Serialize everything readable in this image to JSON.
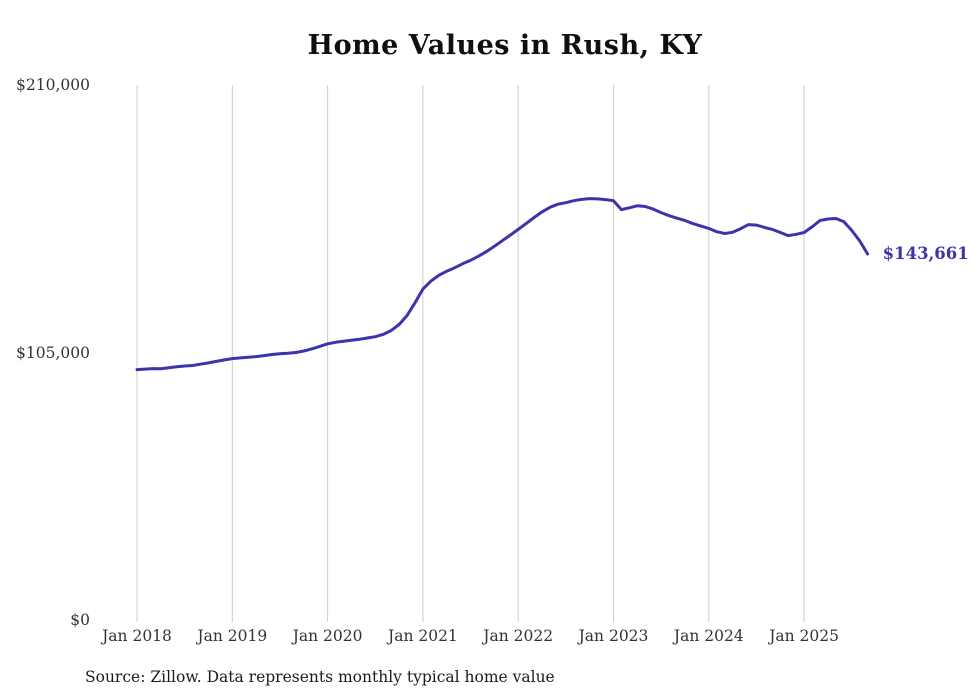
{
  "chart_data": {
    "type": "line",
    "title": "Home Values in Rush, KY",
    "source_note": "Source: Zillow. Data represents monthly typical home value",
    "series_name": "Typical home value",
    "x_start": "Jan 2018",
    "x_end": "Sep 2025",
    "frequency": "monthly",
    "ylim": [
      0,
      210000
    ],
    "grid": "vertical-only",
    "line_color": "#3b34ab",
    "grid_color": "#cccccc",
    "current_value": 143661,
    "end_label": "$143,661",
    "y_ticks": [
      {
        "label": "$0",
        "value": 0
      },
      {
        "label": "$105,000",
        "value": 105000
      },
      {
        "label": "$210,000",
        "value": 210000
      }
    ],
    "x_ticks": [
      {
        "label": "Jan 2018",
        "month_index": 0
      },
      {
        "label": "Jan 2019",
        "month_index": 12
      },
      {
        "label": "Jan 2020",
        "month_index": 24
      },
      {
        "label": "Jan 2021",
        "month_index": 36
      },
      {
        "label": "Jan 2022",
        "month_index": 48
      },
      {
        "label": "Jan 2023",
        "month_index": 60
      },
      {
        "label": "Jan 2024",
        "month_index": 72
      },
      {
        "label": "Jan 2025",
        "month_index": 84
      }
    ],
    "values": [
      98300,
      98500,
      98700,
      98600,
      99000,
      99400,
      99700,
      99900,
      100400,
      100900,
      101500,
      102100,
      102600,
      102900,
      103100,
      103400,
      103800,
      104200,
      104500,
      104700,
      105000,
      105600,
      106400,
      107400,
      108400,
      109000,
      109400,
      109800,
      110200,
      110700,
      111200,
      112100,
      113600,
      116000,
      119500,
      124500,
      129900,
      133000,
      135300,
      136900,
      138300,
      139800,
      141200,
      142800,
      144600,
      146700,
      148900,
      151100,
      153300,
      155600,
      158000,
      160200,
      162000,
      163200,
      163800,
      164600,
      165100,
      165400,
      165300,
      165000,
      164600,
      161100,
      161800,
      162600,
      162300,
      161300,
      159900,
      158700,
      157700,
      156800,
      155600,
      154600,
      153700,
      152400,
      151700,
      152200,
      153600,
      155200,
      155000,
      154100,
      153300,
      152100,
      150900,
      151400,
      152100,
      154300,
      156800,
      157400,
      157600,
      156400,
      152900,
      148800,
      143661
    ]
  }
}
